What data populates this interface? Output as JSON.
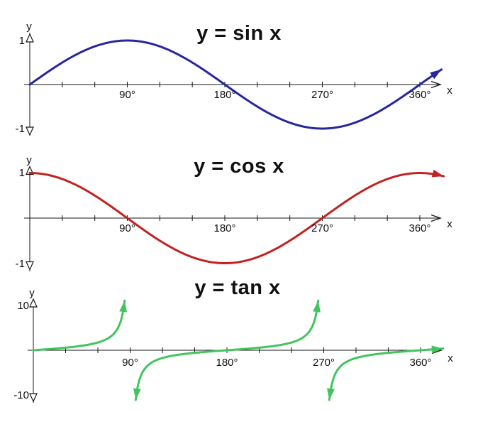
{
  "figure": {
    "background": "#ffffff",
    "axis_color": "#161616"
  },
  "chart_data": [
    {
      "type": "line",
      "title": "y = sin x",
      "function": "sin",
      "xlabel": "x",
      "ylabel": "y",
      "x_unit": "degrees",
      "x_range_deg": [
        0,
        380
      ],
      "ylim": [
        -1,
        1
      ],
      "grid": false,
      "legend": false,
      "x_ticks_deg": [
        30,
        60,
        90,
        120,
        150,
        180,
        210,
        240,
        270,
        300,
        330,
        360
      ],
      "x_tick_label_positions_deg": [
        90,
        180,
        270,
        360
      ],
      "x_tick_labels": [
        "90°",
        "180°",
        "270°",
        "360°"
      ],
      "y_tick_labels": [
        "1",
        "-1"
      ],
      "x_sample_deg": [
        0,
        30,
        60,
        90,
        120,
        150,
        180,
        210,
        240,
        270,
        300,
        330,
        360
      ],
      "values": [
        0,
        0.5,
        0.87,
        1,
        0.87,
        0.5,
        0,
        -0.5,
        -0.87,
        -1,
        -0.87,
        -0.5,
        0
      ],
      "colors": {
        "title": "#1c19cd",
        "curve": "#26269e"
      }
    },
    {
      "type": "line",
      "title": "y = cos x",
      "function": "cos",
      "xlabel": "x",
      "ylabel": "y",
      "x_unit": "degrees",
      "x_range_deg": [
        0,
        382
      ],
      "ylim": [
        -1,
        1
      ],
      "grid": false,
      "legend": false,
      "x_ticks_deg": [
        30,
        60,
        90,
        120,
        150,
        180,
        210,
        240,
        270,
        300,
        330,
        360
      ],
      "x_tick_label_positions_deg": [
        90,
        180,
        270,
        360
      ],
      "x_tick_labels": [
        "90°",
        "180°",
        "270°",
        "360°"
      ],
      "y_tick_labels": [
        "1",
        "-1"
      ],
      "x_sample_deg": [
        0,
        30,
        60,
        90,
        120,
        150,
        180,
        210,
        240,
        270,
        300,
        330,
        360
      ],
      "values": [
        1,
        0.87,
        0.5,
        0,
        -0.5,
        -0.87,
        -1,
        -0.87,
        -0.5,
        0,
        0.5,
        0.87,
        1
      ],
      "colors": {
        "title": "#d32c26",
        "curve": "#c22221"
      }
    },
    {
      "type": "line",
      "title": "y = tan x",
      "function": "tan",
      "xlabel": "x",
      "ylabel": "y",
      "x_unit": "degrees",
      "x_range_deg": [
        0,
        381
      ],
      "ylim": [
        -10,
        10
      ],
      "grid": false,
      "legend": false,
      "asymptotes_deg": [
        90,
        270
      ],
      "x_ticks_deg": [
        30,
        60,
        90,
        120,
        150,
        180,
        210,
        240,
        270,
        300,
        330,
        360
      ],
      "x_tick_label_positions_deg": [
        90,
        180,
        270,
        360
      ],
      "x_tick_labels": [
        "90°",
        "180°",
        "270°",
        "360°"
      ],
      "y_tick_labels": [
        "10",
        "-10"
      ],
      "x_sample_deg": [
        0,
        30,
        60,
        90,
        120,
        150,
        180,
        210,
        240,
        270,
        300,
        330,
        360
      ],
      "values": [
        0,
        0.58,
        1.73,
        null,
        -1.73,
        -0.58,
        0,
        0.58,
        1.73,
        null,
        -1.73,
        -0.58,
        0
      ],
      "colors": {
        "title": "#3fc353",
        "curve": "#42c45e"
      }
    }
  ]
}
